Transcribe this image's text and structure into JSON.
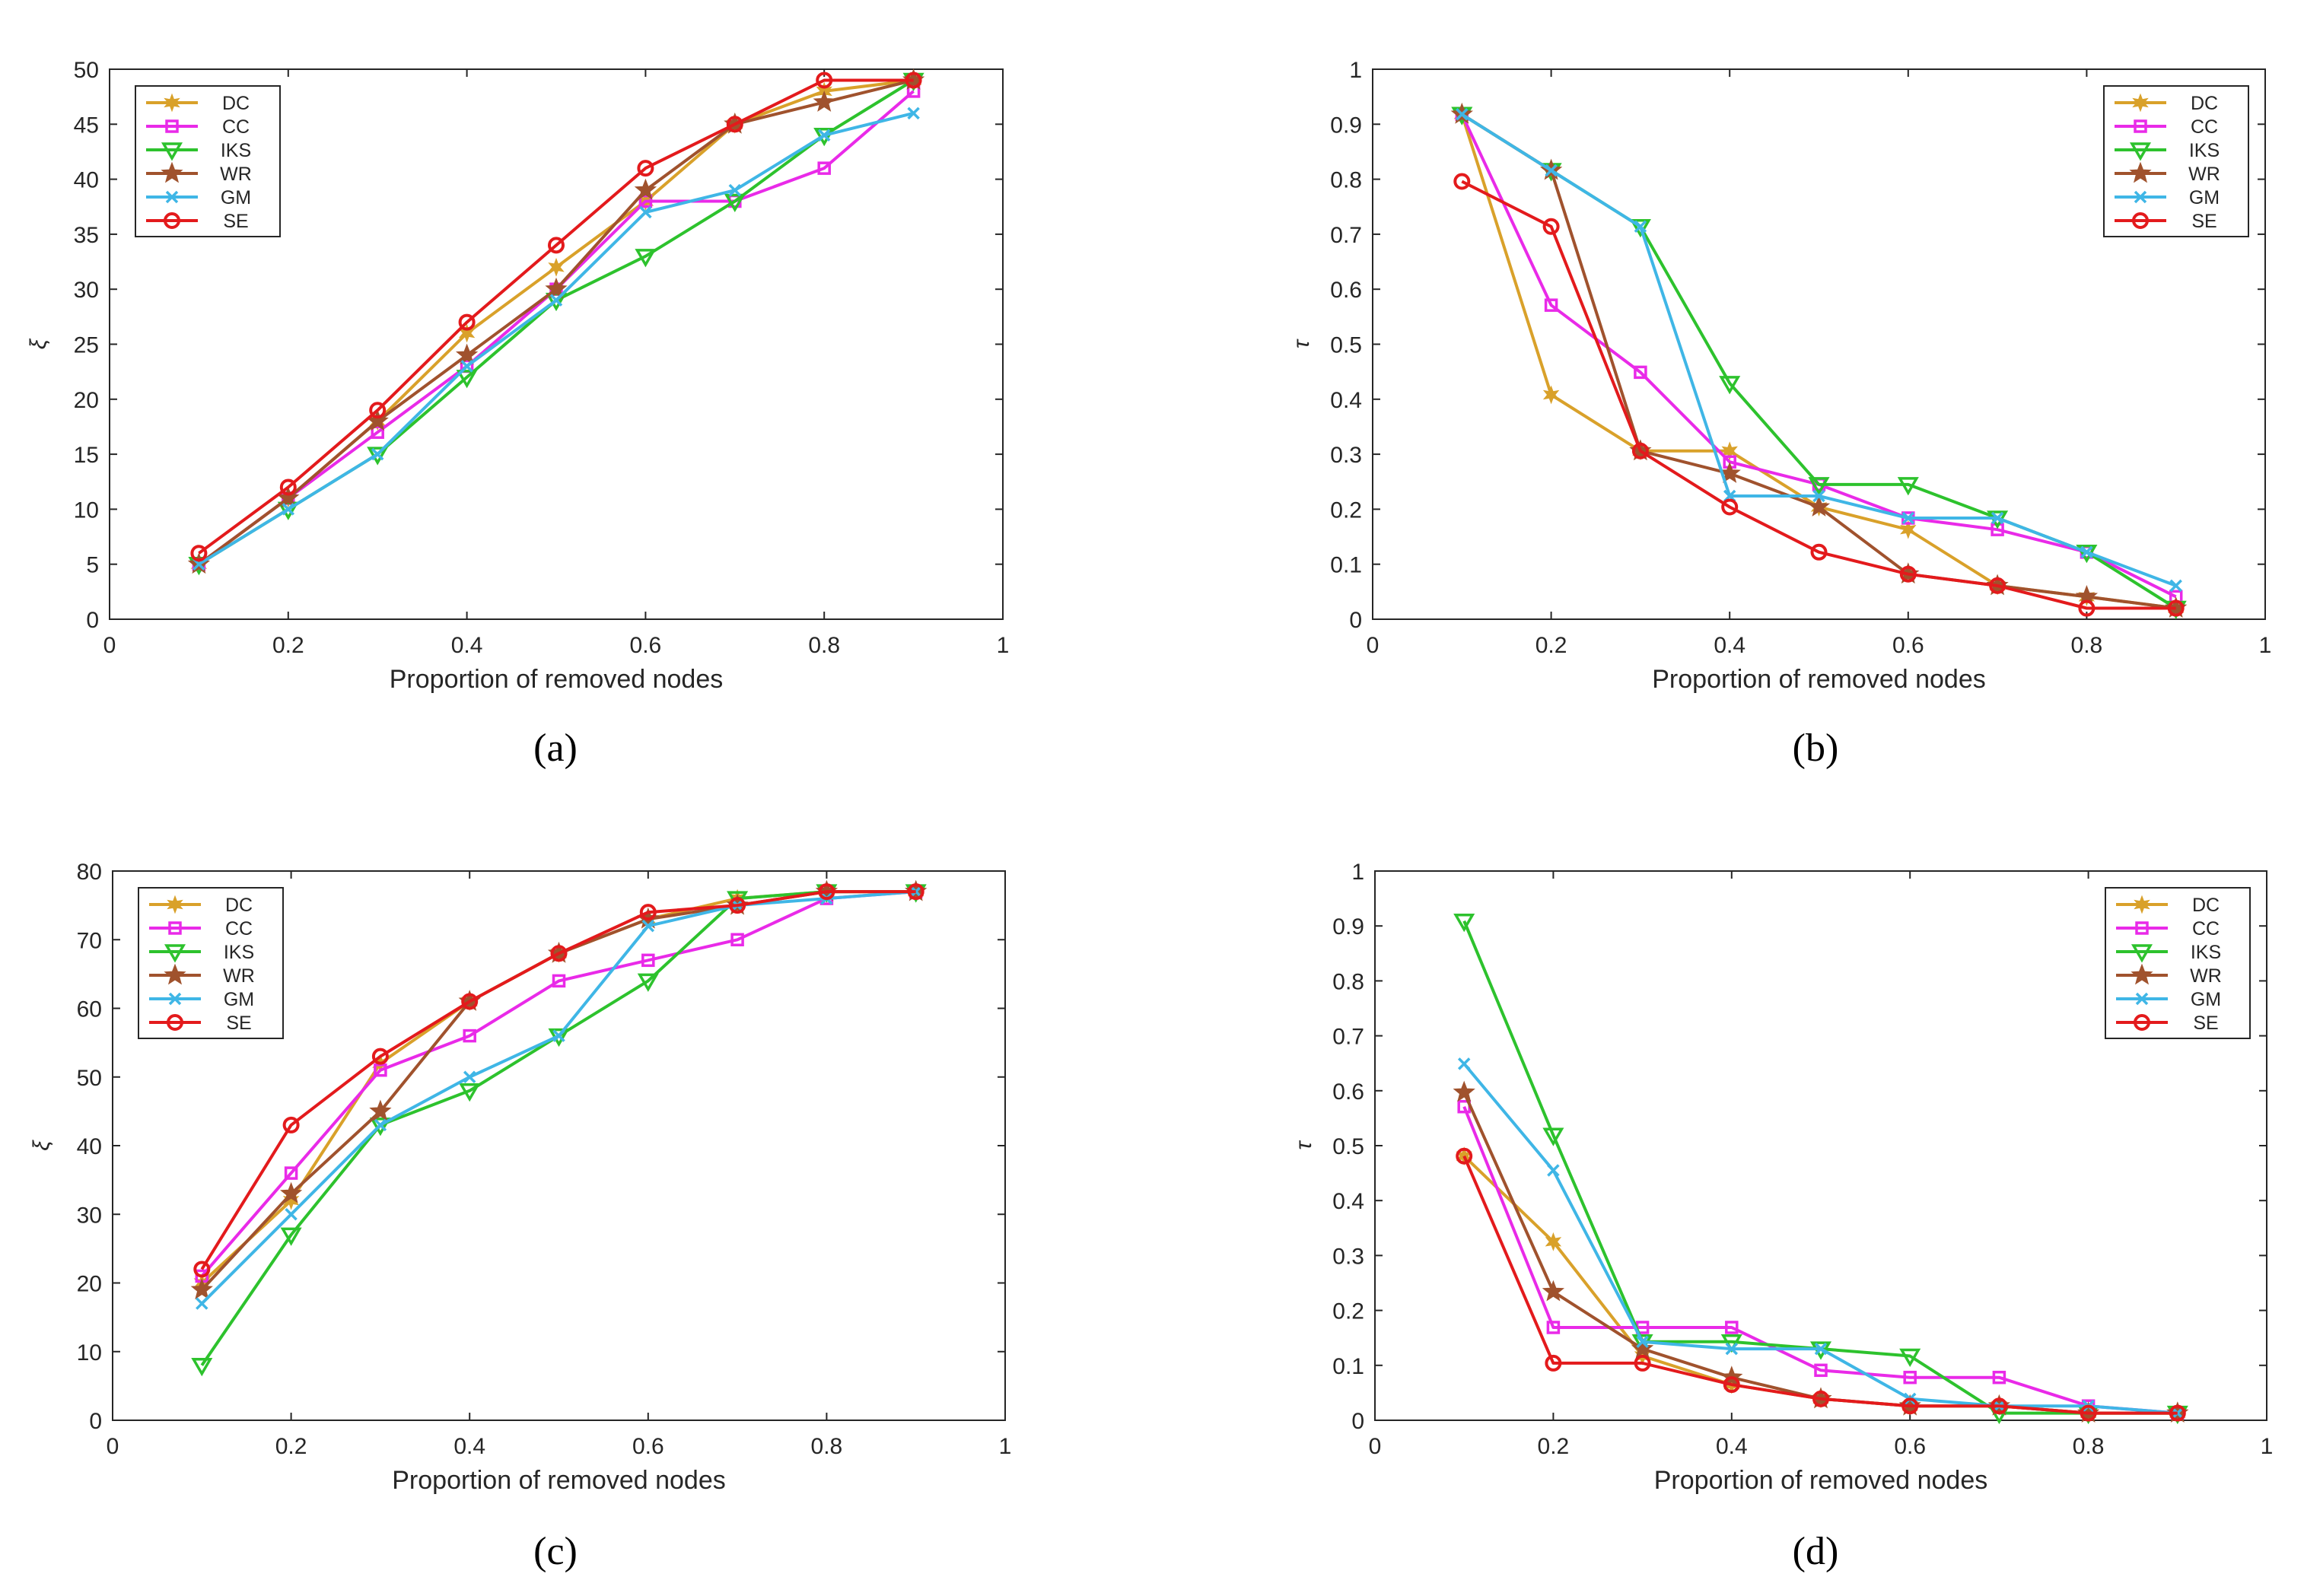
{
  "figure": {
    "captions": [
      "(a)",
      "(b)",
      "(c)",
      "(d)"
    ]
  },
  "colors": {
    "DC": "#D9A12A",
    "CC": "#E92AE8",
    "IKS": "#2DC22D",
    "WR": "#A0522D",
    "GM": "#3FB6E6",
    "SE": "#E31A1C"
  },
  "chart_data": [
    {
      "type": "line",
      "caption": "(a)",
      "xlabel": "Proportion of removed nodes",
      "ylabel": "ξ",
      "xlim": [
        0,
        1
      ],
      "ylim": [
        0,
        50
      ],
      "xticks": [
        0,
        0.2,
        0.4,
        0.6,
        0.8,
        1
      ],
      "yticks": [
        0,
        5,
        10,
        15,
        20,
        25,
        30,
        35,
        40,
        45,
        50
      ],
      "xtick_labels": [
        "0",
        "0.2",
        "0.4",
        "0.6",
        "0.8",
        "1"
      ],
      "ytick_labels": [
        "0",
        "5",
        "10",
        "15",
        "20",
        "25",
        "30",
        "35",
        "40",
        "45",
        "50"
      ],
      "legend_position": "top-left",
      "grid": false,
      "x": [
        0.1,
        0.2,
        0.3,
        0.4,
        0.5,
        0.6,
        0.7,
        0.8,
        0.9
      ],
      "series": [
        {
          "name": "DC",
          "marker": "hexstar",
          "values": [
            5,
            11,
            18,
            26,
            32,
            38,
            45,
            48,
            49
          ]
        },
        {
          "name": "CC",
          "marker": "square",
          "values": [
            5,
            11,
            17,
            23,
            30,
            38,
            38,
            41,
            48
          ]
        },
        {
          "name": "IKS",
          "marker": "triangle-down",
          "values": [
            5,
            10,
            15,
            22,
            29,
            33,
            38,
            44,
            49
          ]
        },
        {
          "name": "WR",
          "marker": "star",
          "values": [
            5,
            11,
            18,
            24,
            30,
            39,
            45,
            47,
            49
          ]
        },
        {
          "name": "GM",
          "marker": "x",
          "values": [
            5,
            10,
            15,
            23,
            29,
            37,
            39,
            44,
            46
          ]
        },
        {
          "name": "SE",
          "marker": "circle",
          "values": [
            6,
            12,
            19,
            27,
            34,
            41,
            45,
            49,
            49
          ]
        }
      ]
    },
    {
      "type": "line",
      "caption": "(b)",
      "xlabel": "Proportion of removed nodes",
      "ylabel": "τ",
      "xlim": [
        0,
        1
      ],
      "ylim": [
        0,
        1
      ],
      "xticks": [
        0,
        0.2,
        0.4,
        0.6,
        0.8,
        1
      ],
      "yticks": [
        0,
        0.1,
        0.2,
        0.3,
        0.4,
        0.5,
        0.6,
        0.7,
        0.8,
        0.9,
        1
      ],
      "xtick_labels": [
        "0",
        "0.2",
        "0.4",
        "0.6",
        "0.8",
        "1"
      ],
      "ytick_labels": [
        "0",
        "0.1",
        "0.2",
        "0.3",
        "0.4",
        "0.5",
        "0.6",
        "0.7",
        "0.8",
        "0.9",
        "1"
      ],
      "legend_position": "top-right",
      "grid": false,
      "x": [
        0.1,
        0.2,
        0.3,
        0.4,
        0.5,
        0.6,
        0.7,
        0.8,
        0.9
      ],
      "series": [
        {
          "name": "DC",
          "marker": "hexstar",
          "values": [
            0.918,
            0.408,
            0.306,
            0.306,
            0.204,
            0.163,
            0.061,
            0.041,
            0.02
          ]
        },
        {
          "name": "CC",
          "marker": "square",
          "values": [
            0.918,
            0.571,
            0.449,
            0.286,
            0.245,
            0.184,
            0.163,
            0.122,
            0.041
          ]
        },
        {
          "name": "IKS",
          "marker": "triangle-down",
          "values": [
            0.918,
            0.816,
            0.714,
            0.429,
            0.245,
            0.245,
            0.184,
            0.122,
            0.02
          ]
        },
        {
          "name": "WR",
          "marker": "star",
          "values": [
            0.918,
            0.816,
            0.306,
            0.265,
            0.204,
            0.082,
            0.061,
            0.041,
            0.02
          ]
        },
        {
          "name": "GM",
          "marker": "x",
          "values": [
            0.918,
            0.816,
            0.714,
            0.224,
            0.224,
            0.184,
            0.184,
            0.122,
            0.061
          ]
        },
        {
          "name": "SE",
          "marker": "circle",
          "values": [
            0.796,
            0.714,
            0.306,
            0.204,
            0.122,
            0.082,
            0.061,
            0.02,
            0.02
          ]
        }
      ]
    },
    {
      "type": "line",
      "caption": "(c)",
      "xlabel": "Proportion of removed nodes",
      "ylabel": "ξ",
      "xlim": [
        0,
        1
      ],
      "ylim": [
        0,
        80
      ],
      "xticks": [
        0,
        0.2,
        0.4,
        0.6,
        0.8,
        1
      ],
      "yticks": [
        0,
        10,
        20,
        30,
        40,
        50,
        60,
        70,
        80
      ],
      "xtick_labels": [
        "0",
        "0.2",
        "0.4",
        "0.6",
        "0.8",
        "1"
      ],
      "ytick_labels": [
        "0",
        "10",
        "20",
        "30",
        "40",
        "50",
        "60",
        "70",
        "80"
      ],
      "legend_position": "top-left",
      "grid": false,
      "x": [
        0.1,
        0.2,
        0.3,
        0.4,
        0.5,
        0.6,
        0.7,
        0.8,
        0.9
      ],
      "series": [
        {
          "name": "DC",
          "marker": "hexstar",
          "values": [
            20,
            32,
            52,
            61,
            68,
            73,
            76,
            77,
            77
          ]
        },
        {
          "name": "CC",
          "marker": "square",
          "values": [
            21,
            36,
            51,
            56,
            64,
            67,
            70,
            76,
            77
          ]
        },
        {
          "name": "IKS",
          "marker": "triangle-down",
          "values": [
            8,
            27,
            43,
            48,
            56,
            64,
            76,
            77,
            77
          ]
        },
        {
          "name": "WR",
          "marker": "star",
          "values": [
            19,
            33,
            45,
            61,
            68,
            73,
            75,
            77,
            77
          ]
        },
        {
          "name": "GM",
          "marker": "x",
          "values": [
            17,
            30,
            43,
            50,
            56,
            72,
            75,
            76,
            77
          ]
        },
        {
          "name": "SE",
          "marker": "circle",
          "values": [
            22,
            43,
            53,
            61,
            68,
            74,
            75,
            77,
            77
          ]
        }
      ]
    },
    {
      "type": "line",
      "caption": "(d)",
      "xlabel": "Proportion of removed nodes",
      "ylabel": "τ",
      "xlim": [
        0,
        1
      ],
      "ylim": [
        0,
        1
      ],
      "xticks": [
        0,
        0.2,
        0.4,
        0.6,
        0.8,
        1
      ],
      "yticks": [
        0,
        0.1,
        0.2,
        0.3,
        0.4,
        0.5,
        0.6,
        0.7,
        0.8,
        0.9,
        1
      ],
      "xtick_labels": [
        "0",
        "0.2",
        "0.4",
        "0.6",
        "0.8",
        "1"
      ],
      "ytick_labels": [
        "0",
        "0.1",
        "0.2",
        "0.3",
        "0.4",
        "0.5",
        "0.6",
        "0.7",
        "0.8",
        "0.9",
        "1"
      ],
      "legend_position": "top-right",
      "grid": false,
      "x": [
        0.1,
        0.2,
        0.3,
        0.4,
        0.5,
        0.6,
        0.7,
        0.8,
        0.9
      ],
      "series": [
        {
          "name": "DC",
          "marker": "hexstar",
          "values": [
            0.481,
            0.325,
            0.117,
            0.065,
            0.039,
            0.026,
            0.026,
            0.013,
            0.013
          ]
        },
        {
          "name": "CC",
          "marker": "square",
          "values": [
            0.571,
            0.169,
            0.169,
            0.169,
            0.091,
            0.078,
            0.078,
            0.026,
            0.013
          ]
        },
        {
          "name": "IKS",
          "marker": "triangle-down",
          "values": [
            0.909,
            0.519,
            0.143,
            0.143,
            0.13,
            0.117,
            0.013,
            0.013,
            0.013
          ]
        },
        {
          "name": "WR",
          "marker": "star",
          "values": [
            0.597,
            0.234,
            0.13,
            0.078,
            0.039,
            0.026,
            0.026,
            0.013,
            0.013
          ]
        },
        {
          "name": "GM",
          "marker": "x",
          "values": [
            0.649,
            0.455,
            0.143,
            0.13,
            0.13,
            0.039,
            0.026,
            0.026,
            0.013
          ]
        },
        {
          "name": "SE",
          "marker": "circle",
          "values": [
            0.481,
            0.104,
            0.104,
            0.065,
            0.039,
            0.026,
            0.026,
            0.013,
            0.013
          ]
        }
      ]
    }
  ]
}
